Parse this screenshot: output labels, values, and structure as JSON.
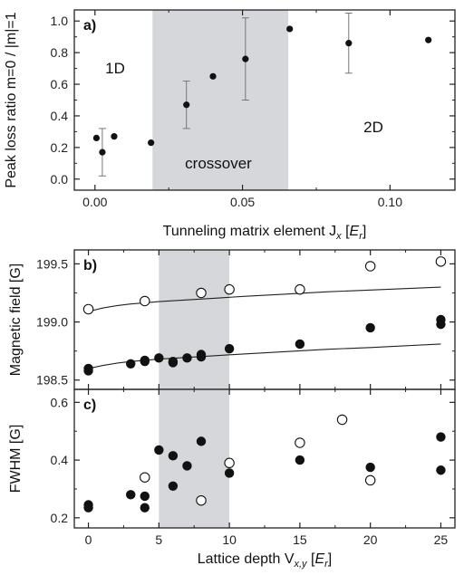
{
  "chart_data": [
    {
      "type": "scatter",
      "panel_label": "a)",
      "xlabel": "Tunneling matrix element J",
      "xlabel_sub": "x",
      "xlabel_unit_open": " [",
      "xlabel_unit": "E",
      "xlabel_unit_sub": "r",
      "xlabel_unit_close": "]",
      "ylabel": "Peak loss ratio m=0 / |m|=1",
      "xlim": [
        -0.007,
        0.122
      ],
      "ylim": [
        -0.07,
        1.07
      ],
      "xticks": [
        0.0,
        0.05,
        0.1
      ],
      "xtick_labels": [
        "0.00",
        "0.05",
        "0.10"
      ],
      "yticks": [
        0.0,
        0.2,
        0.4,
        0.6,
        0.8,
        1.0
      ],
      "ytick_labels": [
        "0.0",
        "0.2",
        "0.4",
        "0.6",
        "0.8",
        "1.0"
      ],
      "shaded_region": [
        0.0195,
        0.0655
      ],
      "annotations": [
        "1D",
        "crossover",
        "2D"
      ],
      "series": [
        {
          "marker": "filled",
          "x": [
            0.0005,
            0.0025,
            0.0065,
            0.019,
            0.031,
            0.04,
            0.051,
            0.066,
            0.086,
            0.113
          ],
          "y": [
            0.26,
            0.17,
            0.27,
            0.23,
            0.47,
            0.65,
            0.76,
            0.95,
            0.86,
            0.88
          ],
          "err": [
            0,
            0.15,
            0,
            0,
            0.15,
            0,
            0.26,
            0,
            0.19,
            0
          ]
        }
      ]
    },
    {
      "type": "scatter",
      "panel_label": "b)",
      "ylabel": "Magnetic field [G]",
      "xlim": [
        -1,
        26
      ],
      "ylim": [
        198.42,
        199.62
      ],
      "yticks": [
        198.5,
        199.0,
        199.5
      ],
      "ytick_labels": [
        "198.5",
        "199.0",
        "199.5"
      ],
      "shaded_region": [
        5,
        10
      ],
      "series": [
        {
          "marker": "open",
          "x": [
            0,
            4,
            8,
            10,
            15,
            20,
            25
          ],
          "y": [
            199.11,
            199.18,
            199.25,
            199.28,
            199.28,
            199.48,
            199.52
          ]
        },
        {
          "marker": "filled",
          "x": [
            0,
            0,
            3,
            4,
            4,
            5,
            6,
            6,
            7,
            8,
            8,
            10,
            15,
            20,
            25,
            25
          ],
          "y": [
            198.6,
            198.58,
            198.64,
            198.66,
            198.67,
            198.69,
            198.65,
            198.66,
            198.69,
            198.7,
            198.72,
            198.77,
            198.81,
            198.95,
            199.02,
            198.98
          ]
        }
      ],
      "fit_curves": [
        {
          "x": [
            0,
            1,
            2,
            3,
            4,
            5,
            7,
            9,
            11,
            14,
            17,
            20,
            25
          ],
          "y": [
            199.09,
            199.12,
            199.14,
            199.155,
            199.165,
            199.175,
            199.19,
            199.205,
            199.22,
            199.24,
            199.26,
            199.275,
            199.3
          ]
        },
        {
          "x": [
            0,
            1,
            2,
            3,
            4,
            5,
            7,
            9,
            11,
            14,
            17,
            20,
            25
          ],
          "y": [
            198.6,
            198.625,
            198.645,
            198.66,
            198.67,
            198.68,
            198.695,
            198.71,
            198.725,
            198.745,
            198.765,
            198.78,
            198.81
          ]
        }
      ]
    },
    {
      "type": "scatter",
      "panel_label": "c)",
      "xlabel": "Lattice depth V",
      "xlabel_sub": "x,y",
      "xlabel_unit_open": " [",
      "xlabel_unit": "E",
      "xlabel_unit_sub": "r",
      "xlabel_unit_close": "]",
      "ylabel": "FWHM [G]",
      "xlim": [
        -1,
        26
      ],
      "ylim": [
        0.165,
        0.645
      ],
      "xticks": [
        0,
        5,
        10,
        15,
        20,
        25
      ],
      "xtick_labels": [
        "0",
        "5",
        "10",
        "15",
        "20",
        "25"
      ],
      "yticks": [
        0.2,
        0.4,
        0.6
      ],
      "ytick_labels": [
        "0.2",
        "0.4",
        "0.6"
      ],
      "shaded_region": [
        5,
        10
      ],
      "series": [
        {
          "marker": "open",
          "x": [
            4,
            8,
            10,
            15,
            18,
            20
          ],
          "y": [
            0.34,
            0.26,
            0.39,
            0.46,
            0.54,
            0.33
          ]
        },
        {
          "marker": "filled",
          "x": [
            0,
            0,
            3,
            4,
            4,
            5,
            6,
            6,
            7,
            8,
            10,
            15,
            20,
            25,
            25
          ],
          "y": [
            0.245,
            0.235,
            0.28,
            0.275,
            0.235,
            0.435,
            0.415,
            0.31,
            0.38,
            0.465,
            0.355,
            0.4,
            0.375,
            0.48,
            0.365
          ]
        }
      ]
    }
  ]
}
